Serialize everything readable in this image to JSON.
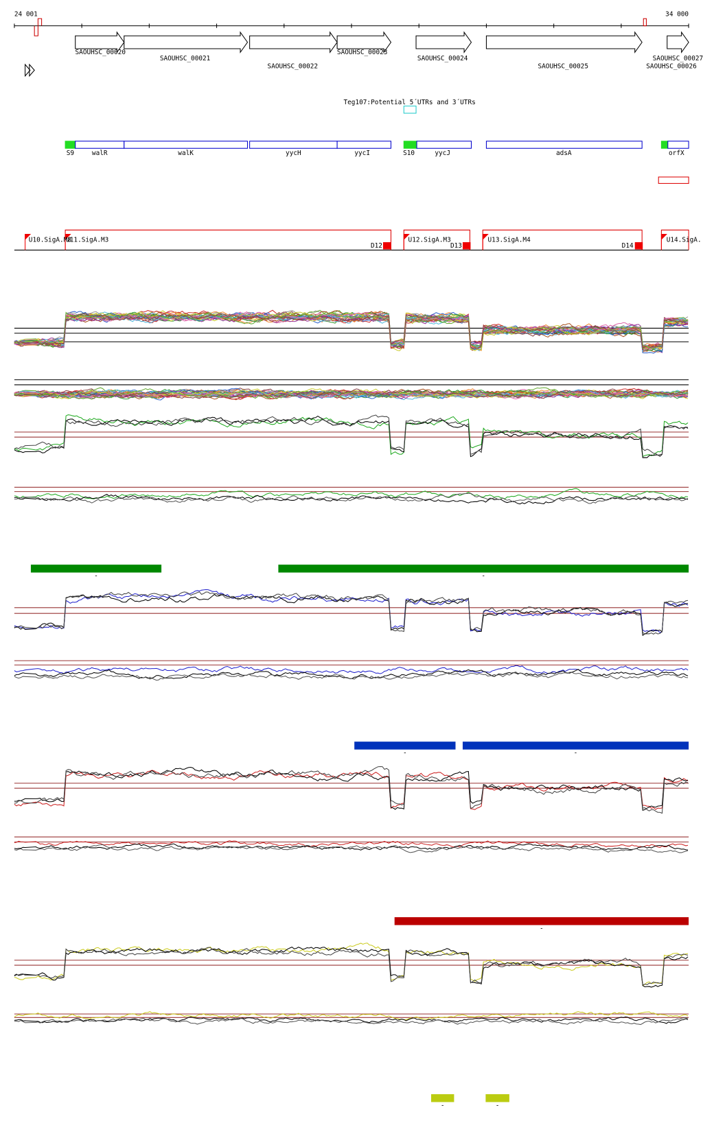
{
  "header": {
    "start": "24 001",
    "end": "34 000"
  },
  "genes": [
    {
      "label": "SAOUHSC_00020"
    },
    {
      "label": "SAOUHSC_00021"
    },
    {
      "label": "SAOUHSC_00022"
    },
    {
      "label": "SAOUHSC_00023"
    },
    {
      "label": "SAOUHSC_00024"
    },
    {
      "label": "SAOUHSC_00025"
    },
    {
      "label": "SAOUHSC_00027"
    },
    {
      "label": "SAOUHSC_00026"
    }
  ],
  "annotation": "Teg107:Potential 5´UTRs and 3´UTRs",
  "features": [
    {
      "label": "S9"
    },
    {
      "label": "walR"
    },
    {
      "label": "walK"
    },
    {
      "label": "yycH"
    },
    {
      "label": "yycI"
    },
    {
      "label": "S10"
    },
    {
      "label": "yycJ"
    },
    {
      "label": "adsA"
    },
    {
      "label": "orfX"
    }
  ],
  "promoters": [
    {
      "label": "U10.SigA.M8"
    },
    {
      "label": "U11.SigA.M3"
    },
    {
      "label": "D12"
    },
    {
      "label": "U12.SigA.M3"
    },
    {
      "label": "D13"
    },
    {
      "label": "U13.SigA.M4"
    },
    {
      "label": "D14"
    },
    {
      "label": "U14.SigA."
    }
  ],
  "regions": [
    {
      "label": "-"
    },
    {
      "label": "-"
    },
    {
      "label": "-"
    },
    {
      "label": "-"
    },
    {
      "label": "-"
    },
    {
      "label": "-"
    },
    {
      "label": "-"
    }
  ]
}
